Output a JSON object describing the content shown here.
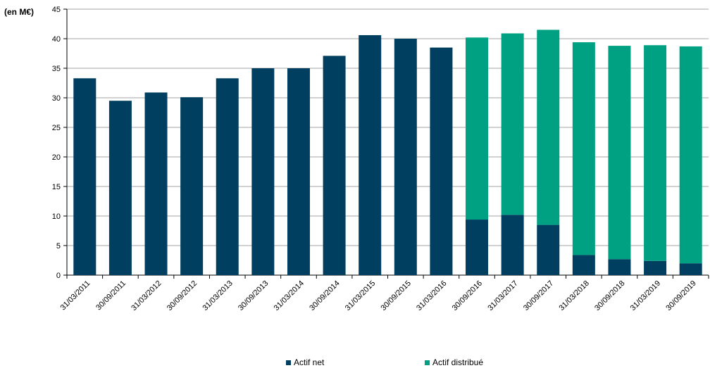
{
  "chart_data": {
    "type": "bar",
    "stacked": true,
    "unit_label": "(en M€)",
    "categories": [
      "31/03/2011",
      "30/09/2011",
      "31/03/2012",
      "30/09/2012",
      "31/03/2013",
      "30/09/2013",
      "31/03/2014",
      "30/09/2014",
      "31/03/2015",
      "30/09/2015",
      "31/03/2016",
      "30/09/2016",
      "31/03/2017",
      "30/09/2017",
      "31/03/2018",
      "30/09/2018",
      "31/03/2019",
      "30/09/2019"
    ],
    "series": [
      {
        "name": "Actif net",
        "color": "#003f5f",
        "values": [
          33.3,
          29.5,
          30.9,
          30.1,
          33.3,
          35.0,
          35.0,
          37.1,
          40.6,
          40.0,
          38.5,
          9.4,
          10.2,
          8.5,
          3.4,
          2.7,
          2.4,
          2.0
        ]
      },
      {
        "name": "Actif distribué",
        "color": "#00a182",
        "values": [
          0,
          0,
          0,
          0,
          0,
          0,
          0,
          0,
          0,
          0,
          0,
          30.8,
          30.7,
          33.0,
          36.0,
          36.1,
          36.5,
          36.7
        ]
      }
    ],
    "y_ticks": [
      0,
      5,
      10,
      15,
      20,
      25,
      30,
      35,
      40,
      45
    ],
    "ylim": [
      0,
      45
    ],
    "grid": true,
    "legend_position": "bottom"
  }
}
